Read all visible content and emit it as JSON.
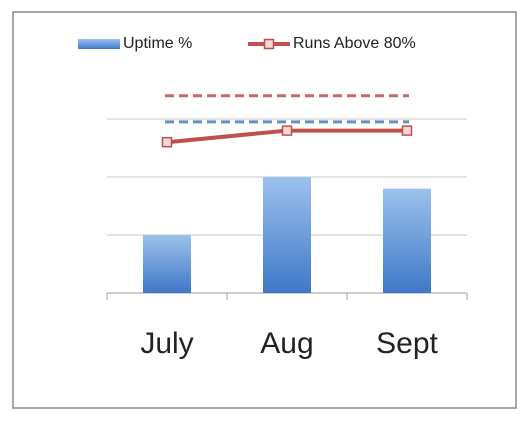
{
  "chart_data": {
    "type": "bar_line",
    "categories": [
      "July",
      "Aug",
      "Sept"
    ],
    "series": [
      {
        "name": "Uptime %",
        "kind": "bar",
        "color": "#4f81bd",
        "values": [
          1.0,
          2.0,
          1.8
        ]
      },
      {
        "name": "Runs Above 80%",
        "kind": "line",
        "color": "#c0504d",
        "values": [
          2.6,
          2.8,
          2.8
        ]
      }
    ],
    "reference_lines": [
      {
        "value": 2.95,
        "color": "#4a7ebb",
        "style": "dashed"
      },
      {
        "value": 3.4,
        "color": "#c0504d",
        "style": "dashed"
      }
    ],
    "ylim": [
      0,
      3.5
    ],
    "yticks": [
      0,
      1,
      2,
      3
    ],
    "grid": true,
    "tick_labels": false,
    "legend": "top"
  }
}
